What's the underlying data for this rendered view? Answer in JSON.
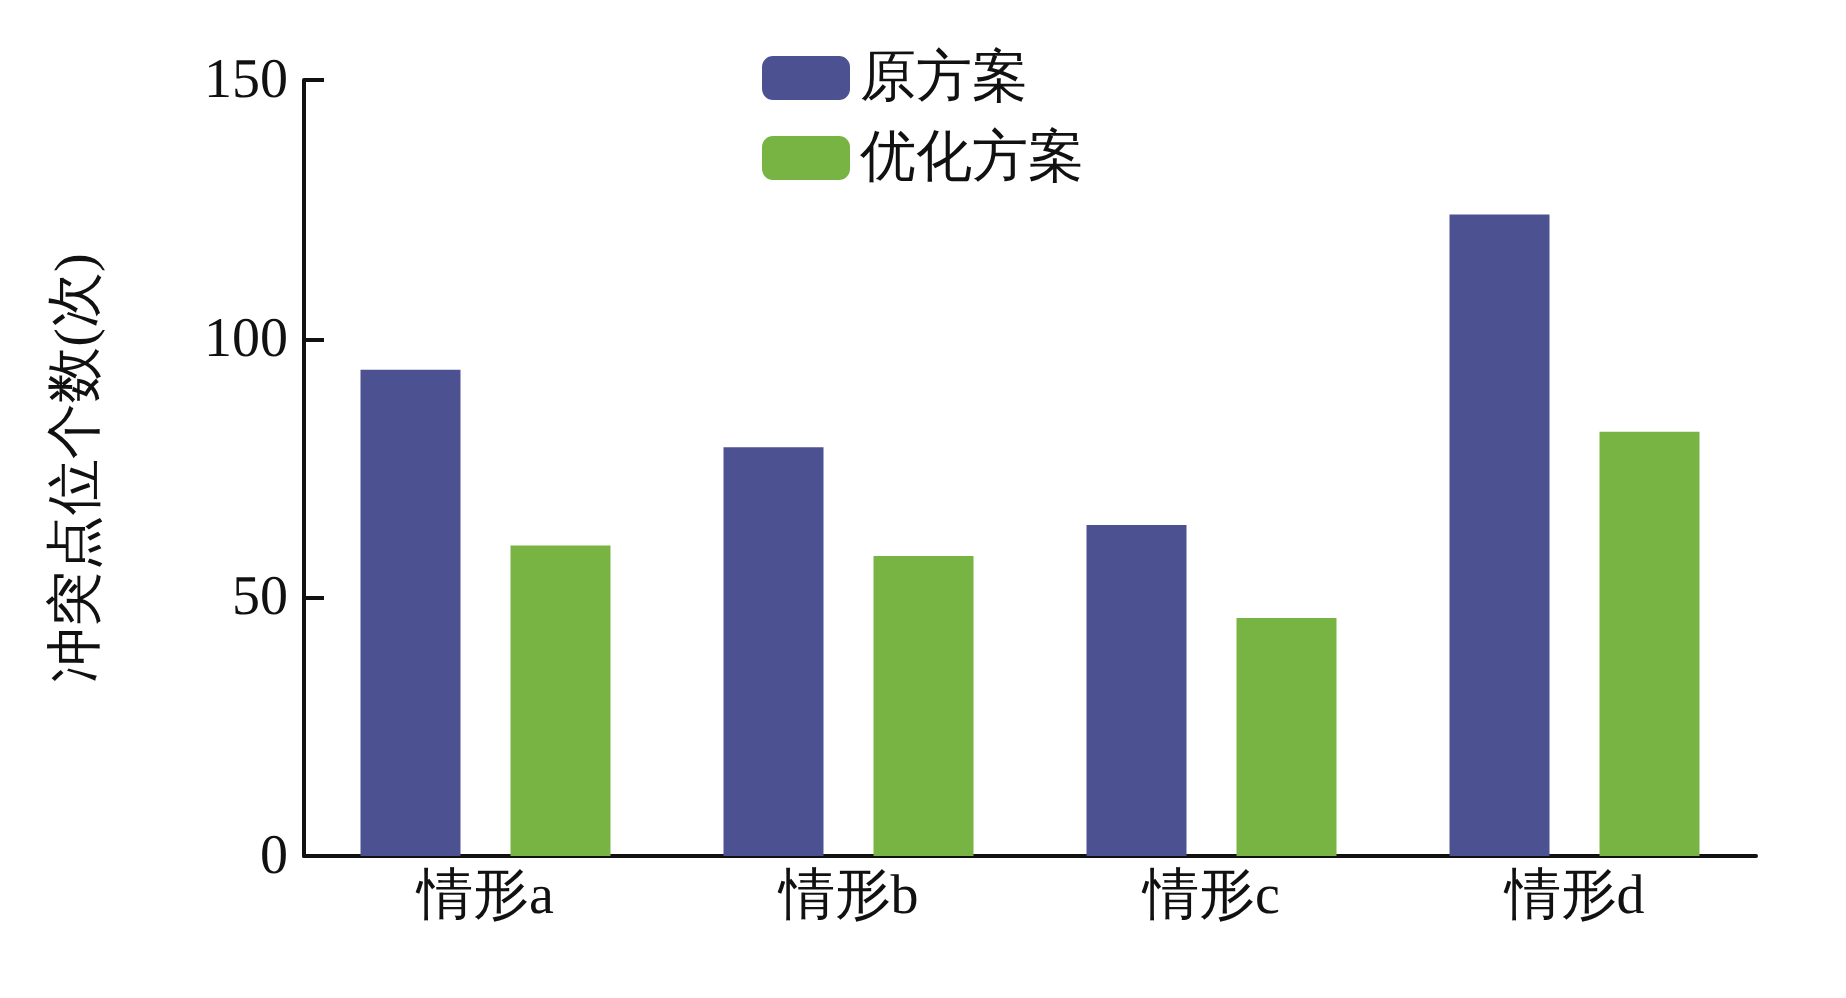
{
  "chart_data": {
    "type": "bar",
    "ylabel": "冲突点位个数(次)",
    "categories": [
      "情形a",
      "情形b",
      "情形c",
      "情形d"
    ],
    "series": [
      {
        "name": "原方案",
        "color": "#4c5291",
        "values": [
          94,
          79,
          64,
          124
        ]
      },
      {
        "name": "优化方案",
        "color": "#78b443",
        "values": [
          60,
          58,
          46,
          82
        ]
      }
    ],
    "ylim": [
      0,
      150
    ],
    "yticks": [
      0,
      50,
      100,
      150
    ],
    "grid": false,
    "legend": "top"
  }
}
